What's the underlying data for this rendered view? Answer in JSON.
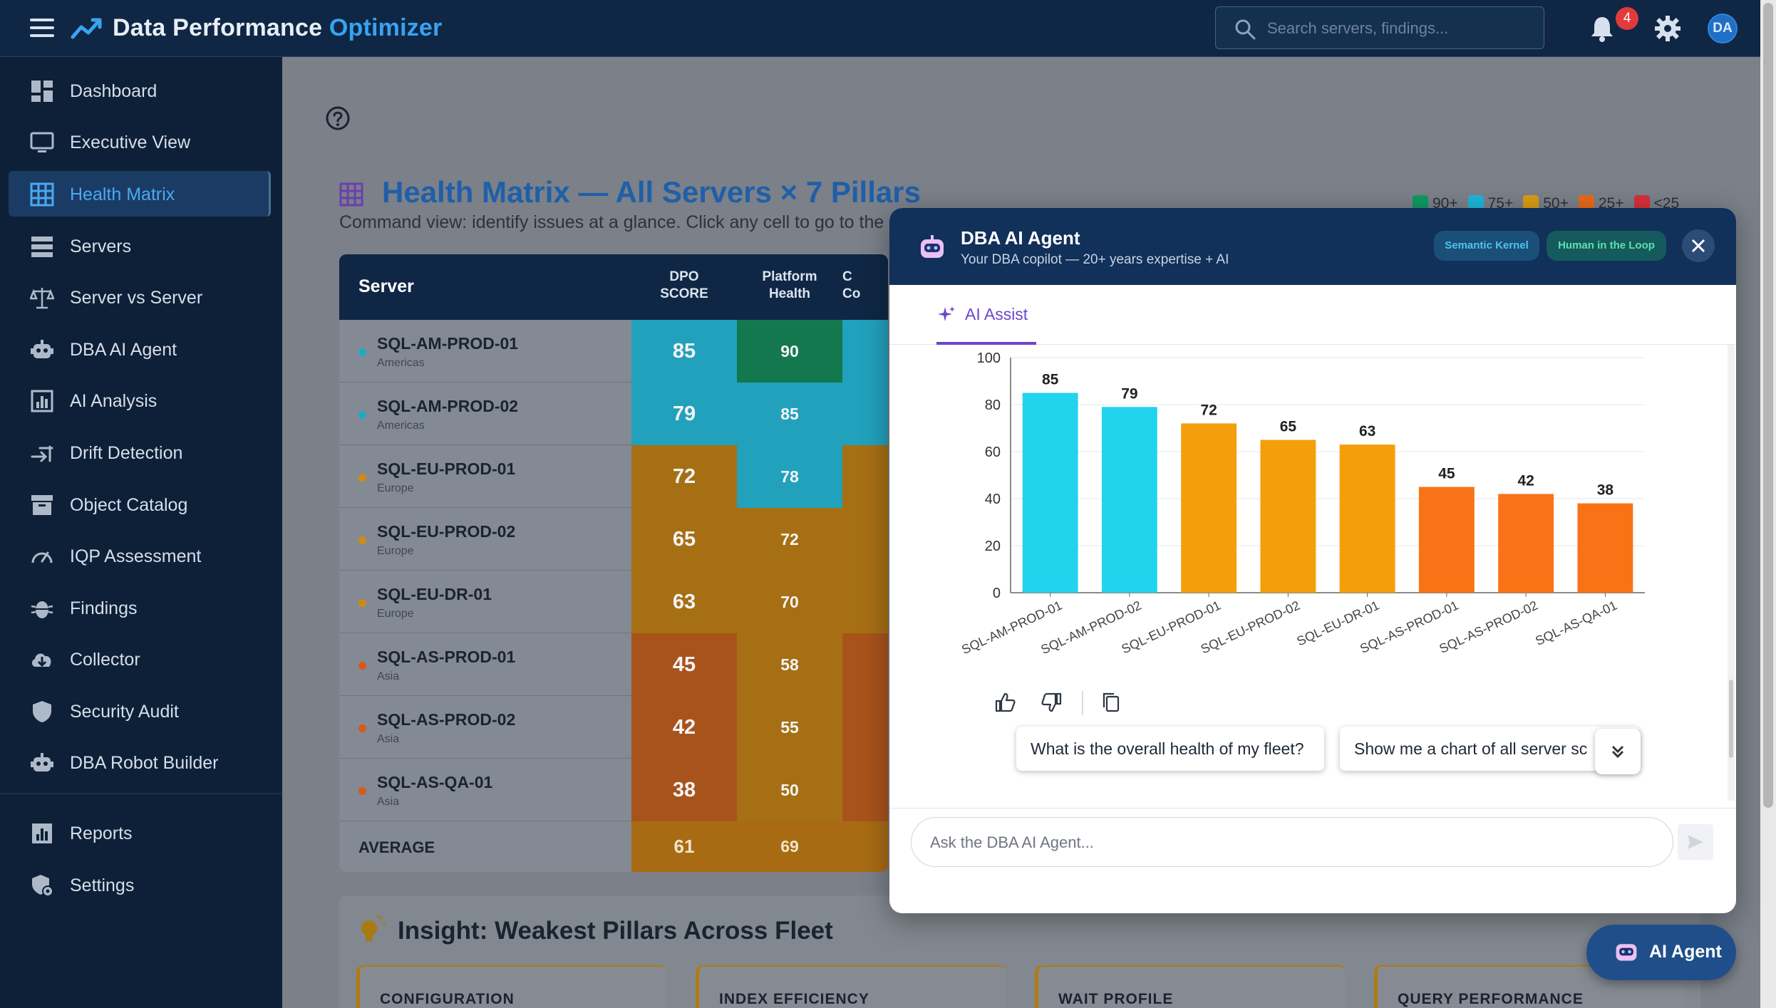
{
  "app": {
    "title_main": "Data Performance",
    "title_accent": "Optimizer",
    "notifications": "4",
    "avatar": "DA"
  },
  "search": {
    "placeholder": "Search servers, findings..."
  },
  "sidebar": {
    "items": [
      {
        "label": "Dashboard",
        "icon": "dashboard-icon"
      },
      {
        "label": "Executive View",
        "icon": "monitor-icon"
      },
      {
        "label": "Health Matrix",
        "icon": "grid-icon"
      },
      {
        "label": "Servers",
        "icon": "servers-icon"
      },
      {
        "label": "Server vs Server",
        "icon": "scale-icon"
      },
      {
        "label": "DBA AI Agent",
        "icon": "robot-icon"
      },
      {
        "label": "AI Analysis",
        "icon": "bar-chart-icon"
      },
      {
        "label": "Drift Detection",
        "icon": "drift-icon"
      },
      {
        "label": "Object Catalog",
        "icon": "archive-icon"
      },
      {
        "label": "IQP Assessment",
        "icon": "gauge-icon"
      },
      {
        "label": "Findings",
        "icon": "bug-icon"
      },
      {
        "label": "Collector",
        "icon": "cloud-download-icon"
      },
      {
        "label": "Security Audit",
        "icon": "shield-icon"
      },
      {
        "label": "DBA Robot Builder",
        "icon": "robot-builder-icon"
      },
      {
        "label": "Reports",
        "icon": "report-icon"
      },
      {
        "label": "Settings",
        "icon": "settings-icon"
      }
    ]
  },
  "page": {
    "title": "Health Matrix — All Servers × 7 Pillars",
    "subtitle": "Command view: identify issues at a glance. Click any cell to go to the",
    "legend": [
      {
        "label": "90+",
        "color": "#0f9a62"
      },
      {
        "label": "75+",
        "color": "#1fb5d8"
      },
      {
        "label": "50+",
        "color": "#d99c12"
      },
      {
        "label": "25+",
        "color": "#e56a1a"
      },
      {
        "label": "<25",
        "color": "#d8303a"
      }
    ]
  },
  "matrix": {
    "header_server": "Server",
    "col_score_l1": "DPO",
    "col_score_l2": "SCORE",
    "col_plat_l1": "Platform",
    "col_plat_l2": "Health",
    "col_partial_l1": "C",
    "col_partial_l2": "Co",
    "rows": [
      {
        "name": "SQL-AM-PROD-01",
        "region": "Americas",
        "score": "85",
        "platform": "90"
      },
      {
        "name": "SQL-AM-PROD-02",
        "region": "Americas",
        "score": "79",
        "platform": "85"
      },
      {
        "name": "SQL-EU-PROD-01",
        "region": "Europe",
        "score": "72",
        "platform": "78"
      },
      {
        "name": "SQL-EU-PROD-02",
        "region": "Europe",
        "score": "65",
        "platform": "72"
      },
      {
        "name": "SQL-EU-DR-01",
        "region": "Europe",
        "score": "63",
        "platform": "70"
      },
      {
        "name": "SQL-AS-PROD-01",
        "region": "Asia",
        "score": "45",
        "platform": "58"
      },
      {
        "name": "SQL-AS-PROD-02",
        "region": "Asia",
        "score": "42",
        "platform": "55"
      },
      {
        "name": "SQL-AS-QA-01",
        "region": "Asia",
        "score": "38",
        "platform": "50"
      }
    ],
    "average_label": "AVERAGE",
    "average_score": "61",
    "average_platform": "69"
  },
  "insight": {
    "title": "Insight: Weakest Pillars Across Fleet",
    "cards": [
      "CONFIGURATION",
      "INDEX EFFICIENCY",
      "WAIT PROFILE",
      "QUERY PERFORMANCE"
    ]
  },
  "ai_panel": {
    "title": "DBA AI Agent",
    "subtitle": "Your DBA copilot — 20+ years expertise + AI",
    "pill_sk": "Semantic Kernel",
    "pill_hl": "Human in the Loop",
    "tab": "AI Assist",
    "chips": [
      "What is the overall health of my fleet?",
      "Show me a chart of all server sc"
    ],
    "input_placeholder": "Ask the DBA AI Agent..."
  },
  "fab": {
    "label": "AI Agent"
  },
  "chart_data": {
    "type": "bar",
    "title": "",
    "categories": [
      "SQL-AM-PROD-01",
      "SQL-AM-PROD-02",
      "SQL-EU-PROD-01",
      "SQL-EU-PROD-02",
      "SQL-EU-DR-01",
      "SQL-AS-PROD-01",
      "SQL-AS-PROD-02",
      "SQL-AS-QA-01"
    ],
    "values": [
      85,
      79,
      72,
      65,
      63,
      45,
      42,
      38
    ],
    "colors": [
      "#22d3ee",
      "#22d3ee",
      "#f59e0b",
      "#f59e0b",
      "#f59e0b",
      "#f97316",
      "#f97316",
      "#f97316"
    ],
    "xlabel": "",
    "ylabel": "",
    "ylim": [
      0,
      100
    ],
    "yticks": [
      0,
      20,
      40,
      60,
      80,
      100
    ],
    "grid": true
  }
}
